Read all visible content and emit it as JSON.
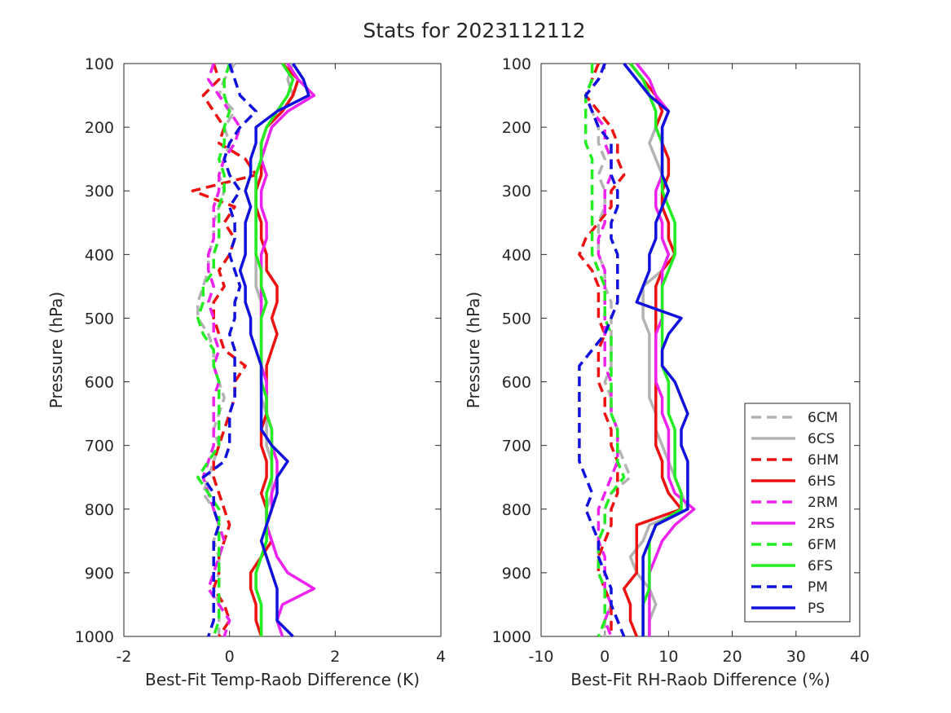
{
  "title": "Stats for 2023112112",
  "colors": {
    "6C": "#b3b3b3",
    "6H": "#ee1111",
    "2R": "#ee22ee",
    "6F": "#22ee22",
    "P": "#1111dd"
  },
  "chart_data": [
    {
      "type": "line",
      "xlabel": "Best-Fit Temp-Raob Difference (K)",
      "ylabel": "Pressure (hPa)",
      "xlim": [
        -2,
        4
      ],
      "ylim": [
        1000,
        100
      ],
      "y_reversed": true,
      "xticks": [
        "-2",
        "0",
        "2",
        "4"
      ],
      "yticks": [
        "100",
        "200",
        "300",
        "400",
        "500",
        "600",
        "700",
        "800",
        "900",
        "1000"
      ],
      "pressure": [
        100,
        125,
        150,
        175,
        200,
        225,
        250,
        275,
        300,
        325,
        350,
        375,
        400,
        425,
        450,
        475,
        500,
        525,
        550,
        575,
        600,
        625,
        650,
        675,
        700,
        725,
        750,
        775,
        800,
        825,
        850,
        875,
        900,
        925,
        950,
        975,
        1000
      ],
      "series": [
        {
          "name": "6CM",
          "style": "dashed",
          "color": "#b3b3b3",
          "values": [
            0.1,
            -0.1,
            -0.2,
            0.1,
            -0.1,
            0.0,
            -0.1,
            -0.2,
            -0.1,
            -0.2,
            -0.3,
            -0.3,
            -0.4,
            -0.4,
            -0.5,
            -0.6,
            -0.6,
            -0.4,
            -0.3,
            -0.3,
            -0.2,
            -0.1,
            -0.2,
            -0.3,
            -0.2,
            -0.3,
            -0.4,
            -0.5,
            -0.3,
            -0.2,
            -0.3,
            -0.2,
            -0.2,
            -0.3,
            -0.2,
            -0.2,
            -0.2
          ]
        },
        {
          "name": "6CS",
          "style": "solid",
          "color": "#b3b3b3",
          "values": [
            1.2,
            1.1,
            1.2,
            1.0,
            0.7,
            0.6,
            0.6,
            0.5,
            0.5,
            0.5,
            0.5,
            0.5,
            0.5,
            0.5,
            0.5,
            0.6,
            0.6,
            0.6,
            0.6,
            0.6,
            0.6,
            0.6,
            0.7,
            0.7,
            0.7,
            0.8,
            0.8,
            0.8,
            0.7,
            0.7,
            0.7,
            0.6,
            0.5,
            0.5,
            0.6,
            0.6,
            0.6
          ]
        },
        {
          "name": "6HM",
          "style": "dashed",
          "color": "#ee1111",
          "values": [
            -0.3,
            -0.2,
            -0.5,
            -0.3,
            -0.1,
            -0.2,
            0.3,
            0.5,
            -0.7,
            0.1,
            -0.1,
            0.1,
            0.0,
            -0.2,
            -0.1,
            -0.3,
            -0.3,
            -0.2,
            -0.1,
            0.3,
            0.1,
            0.1,
            0.0,
            -0.1,
            -0.2,
            -0.3,
            -0.3,
            -0.2,
            -0.1,
            0.0,
            -0.1,
            -0.2,
            -0.2,
            -0.3,
            -0.1,
            0.0,
            -0.2
          ]
        },
        {
          "name": "6HS",
          "style": "solid",
          "color": "#ee1111",
          "values": [
            1.0,
            1.3,
            1.2,
            1.0,
            0.7,
            0.6,
            0.6,
            0.6,
            0.5,
            0.5,
            0.6,
            0.6,
            0.7,
            0.7,
            0.9,
            0.9,
            0.8,
            0.9,
            0.8,
            0.7,
            0.7,
            0.7,
            0.7,
            0.6,
            0.6,
            0.7,
            0.7,
            0.6,
            0.7,
            0.7,
            0.8,
            0.6,
            0.4,
            0.4,
            0.5,
            0.5,
            0.6
          ]
        },
        {
          "name": "2RM",
          "style": "dashed",
          "color": "#ee22ee",
          "values": [
            -0.3,
            -0.4,
            -0.2,
            0.0,
            0.2,
            0.1,
            -0.1,
            -0.2,
            -0.2,
            -0.3,
            -0.3,
            -0.3,
            -0.4,
            -0.4,
            -0.3,
            -0.4,
            -0.3,
            -0.3,
            -0.2,
            -0.3,
            -0.2,
            -0.3,
            -0.3,
            -0.3,
            -0.3,
            -0.4,
            -0.5,
            -0.4,
            -0.3,
            -0.2,
            -0.1,
            -0.2,
            -0.3,
            -0.4,
            -0.2,
            0.0,
            -0.1
          ]
        },
        {
          "name": "2RS",
          "style": "solid",
          "color": "#ee22ee",
          "values": [
            1.1,
            1.3,
            1.6,
            1.1,
            0.8,
            0.7,
            0.6,
            0.7,
            0.6,
            0.6,
            0.7,
            0.7,
            0.6,
            0.6,
            0.6,
            0.6,
            0.6,
            0.6,
            0.6,
            0.6,
            0.7,
            0.7,
            0.7,
            0.8,
            0.8,
            0.9,
            0.9,
            0.8,
            0.8,
            0.7,
            0.8,
            0.9,
            1.1,
            1.6,
            1.0,
            0.9,
            1.0
          ]
        },
        {
          "name": "6FM",
          "style": "dashed",
          "color": "#22ee22",
          "values": [
            0.0,
            -0.1,
            -0.1,
            0.0,
            -0.1,
            -0.1,
            -0.2,
            -0.1,
            -0.1,
            -0.2,
            -0.2,
            -0.2,
            -0.3,
            -0.3,
            -0.5,
            -0.5,
            -0.6,
            -0.5,
            -0.3,
            -0.3,
            -0.2,
            -0.2,
            -0.2,
            -0.2,
            -0.2,
            -0.4,
            -0.6,
            -0.4,
            -0.2,
            -0.2,
            -0.2,
            -0.2,
            -0.2,
            -0.2,
            -0.2,
            -0.2,
            -0.3
          ]
        },
        {
          "name": "6FS",
          "style": "solid",
          "color": "#22ee22",
          "values": [
            1.0,
            1.2,
            1.1,
            0.9,
            0.7,
            0.6,
            0.6,
            0.5,
            0.5,
            0.5,
            0.5,
            0.5,
            0.5,
            0.6,
            0.6,
            0.7,
            0.6,
            0.6,
            0.6,
            0.6,
            0.6,
            0.7,
            0.7,
            0.8,
            0.8,
            0.8,
            0.8,
            0.7,
            0.7,
            0.7,
            0.7,
            0.6,
            0.5,
            0.5,
            0.6,
            0.6,
            0.6
          ]
        },
        {
          "name": "PM",
          "style": "dashed",
          "color": "#1111dd",
          "values": [
            0.0,
            0.1,
            0.2,
            0.5,
            0.2,
            0.0,
            -0.1,
            0.0,
            0.2,
            0.0,
            0.1,
            0.1,
            0.0,
            0.1,
            0.2,
            0.1,
            0.1,
            0.0,
            0.1,
            0.1,
            0.1,
            0.1,
            0.0,
            0.0,
            0.0,
            -0.1,
            -0.5,
            -0.3,
            -0.3,
            -0.2,
            -0.3,
            -0.3,
            -0.3,
            -0.3,
            -0.3,
            -0.3,
            -0.4
          ]
        },
        {
          "name": "PS",
          "style": "solid",
          "color": "#1111dd",
          "values": [
            1.2,
            1.4,
            1.5,
            0.9,
            0.5,
            0.5,
            0.4,
            0.4,
            0.3,
            0.4,
            0.3,
            0.3,
            0.3,
            0.2,
            0.3,
            0.3,
            0.4,
            0.4,
            0.5,
            0.6,
            0.6,
            0.6,
            0.6,
            0.6,
            0.8,
            1.1,
            0.9,
            0.9,
            0.8,
            0.7,
            0.6,
            0.7,
            0.8,
            0.9,
            0.9,
            0.9,
            1.2
          ]
        }
      ]
    },
    {
      "type": "line",
      "xlabel": "Best-Fit RH-Raob Difference (%)",
      "ylabel": "Pressure (hPa)",
      "xlim": [
        -10,
        40
      ],
      "ylim": [
        1000,
        100
      ],
      "y_reversed": true,
      "xticks": [
        "-10",
        "0",
        "10",
        "20",
        "30",
        "40"
      ],
      "yticks": [
        "100",
        "200",
        "300",
        "400",
        "500",
        "600",
        "700",
        "800",
        "900",
        "1000"
      ],
      "legend_position": "bottom-right",
      "pressure": [
        100,
        125,
        150,
        175,
        200,
        225,
        250,
        275,
        300,
        325,
        350,
        375,
        400,
        425,
        450,
        475,
        500,
        525,
        550,
        575,
        600,
        625,
        650,
        675,
        700,
        725,
        750,
        775,
        800,
        825,
        850,
        875,
        900,
        925,
        950,
        975,
        1000
      ],
      "series": [
        {
          "name": "6CM",
          "style": "dashed",
          "color": "#b3b3b3",
          "values": [
            -1,
            -2,
            -3,
            -2,
            -1,
            -1,
            0,
            -1,
            0,
            0,
            -1,
            -1,
            -1,
            0,
            0,
            1,
            1,
            1,
            1,
            1,
            0,
            1,
            1,
            2,
            2,
            3,
            4,
            1,
            0,
            0,
            -1,
            -1,
            -1,
            0,
            1,
            0,
            0
          ]
        },
        {
          "name": "6CS",
          "style": "solid",
          "color": "#b3b3b3",
          "values": [
            4,
            6,
            7,
            8,
            8,
            7,
            8,
            9,
            9,
            9,
            10,
            10,
            11,
            9,
            6,
            6,
            6,
            7,
            7,
            7,
            7,
            7,
            8,
            8,
            9,
            10,
            11,
            12,
            13,
            7,
            6,
            4,
            5,
            7,
            8,
            7,
            7
          ]
        },
        {
          "name": "6HM",
          "style": "dashed",
          "color": "#ee1111",
          "values": [
            -1,
            -2,
            -3,
            -1,
            1,
            2,
            2,
            3,
            1,
            1,
            -1,
            -3,
            -4,
            -2,
            -1,
            -1,
            -1,
            0,
            -1,
            -1,
            -1,
            0,
            0,
            1,
            1,
            2,
            2,
            2,
            1,
            1,
            0,
            -1,
            -1,
            0,
            1,
            1,
            1
          ]
        },
        {
          "name": "6HS",
          "style": "solid",
          "color": "#ee1111",
          "values": [
            4,
            6,
            8,
            9,
            8,
            9,
            10,
            10,
            9,
            9,
            10,
            10,
            11,
            9,
            8,
            8,
            8,
            8,
            8,
            8,
            8,
            8,
            8,
            8,
            8,
            9,
            9,
            10,
            12,
            5,
            5,
            5,
            5,
            3,
            4,
            4,
            5
          ]
        },
        {
          "name": "2RM",
          "style": "dashed",
          "color": "#ee22ee",
          "values": [
            0,
            -1,
            -3,
            -2,
            0,
            0,
            1,
            1,
            0,
            0,
            0,
            -1,
            -1,
            0,
            0,
            0,
            0,
            0,
            0,
            0,
            1,
            1,
            1,
            2,
            2,
            2,
            1,
            0,
            -1,
            -1,
            -1,
            0,
            0,
            0,
            1,
            0,
            1
          ]
        },
        {
          "name": "2RS",
          "style": "solid",
          "color": "#ee22ee",
          "values": [
            5,
            7,
            8,
            10,
            9,
            9,
            9,
            9,
            8,
            8,
            9,
            9,
            10,
            9,
            9,
            9,
            9,
            8,
            8,
            8,
            8,
            9,
            9,
            10,
            10,
            10,
            10,
            11,
            14,
            11,
            9,
            8,
            7,
            7,
            7,
            7,
            7
          ]
        },
        {
          "name": "6FM",
          "style": "dashed",
          "color": "#22ee22",
          "values": [
            -2,
            -2,
            -3,
            -3,
            -3,
            -3,
            -2,
            -2,
            -2,
            -2,
            -2,
            -2,
            -2,
            -1,
            0,
            0,
            0,
            1,
            1,
            1,
            1,
            1,
            1,
            2,
            2,
            2,
            3,
            1,
            0,
            0,
            -1,
            -1,
            -1,
            0,
            0,
            0,
            -1
          ]
        },
        {
          "name": "6FS",
          "style": "solid",
          "color": "#22ee22",
          "values": [
            4,
            6,
            7,
            8,
            8,
            9,
            9,
            9,
            9,
            10,
            11,
            11,
            11,
            10,
            9,
            9,
            9,
            9,
            9,
            9,
            10,
            10,
            10,
            11,
            11,
            11,
            11,
            12,
            12,
            8,
            7,
            7,
            7,
            7,
            6,
            6,
            6
          ]
        },
        {
          "name": "PM",
          "style": "dashed",
          "color": "#1111dd",
          "values": [
            0,
            -1,
            -3,
            -2,
            -1,
            1,
            1,
            1,
            2,
            2,
            1,
            1,
            2,
            2,
            2,
            2,
            1,
            0,
            -2,
            -4,
            -4,
            -4,
            -4,
            -4,
            -4,
            -4,
            -3,
            -2,
            -3,
            -2,
            -1,
            -1,
            0,
            1,
            1,
            2,
            3
          ]
        },
        {
          "name": "PS",
          "style": "solid",
          "color": "#1111dd",
          "values": [
            3,
            5,
            7,
            10,
            9,
            9,
            9,
            9,
            10,
            9,
            8,
            8,
            7,
            7,
            6,
            5,
            12,
            10,
            9,
            9,
            11,
            12,
            13,
            12,
            12,
            13,
            13,
            13,
            13,
            8,
            7,
            6,
            6,
            6,
            6,
            6,
            6
          ]
        }
      ]
    }
  ]
}
